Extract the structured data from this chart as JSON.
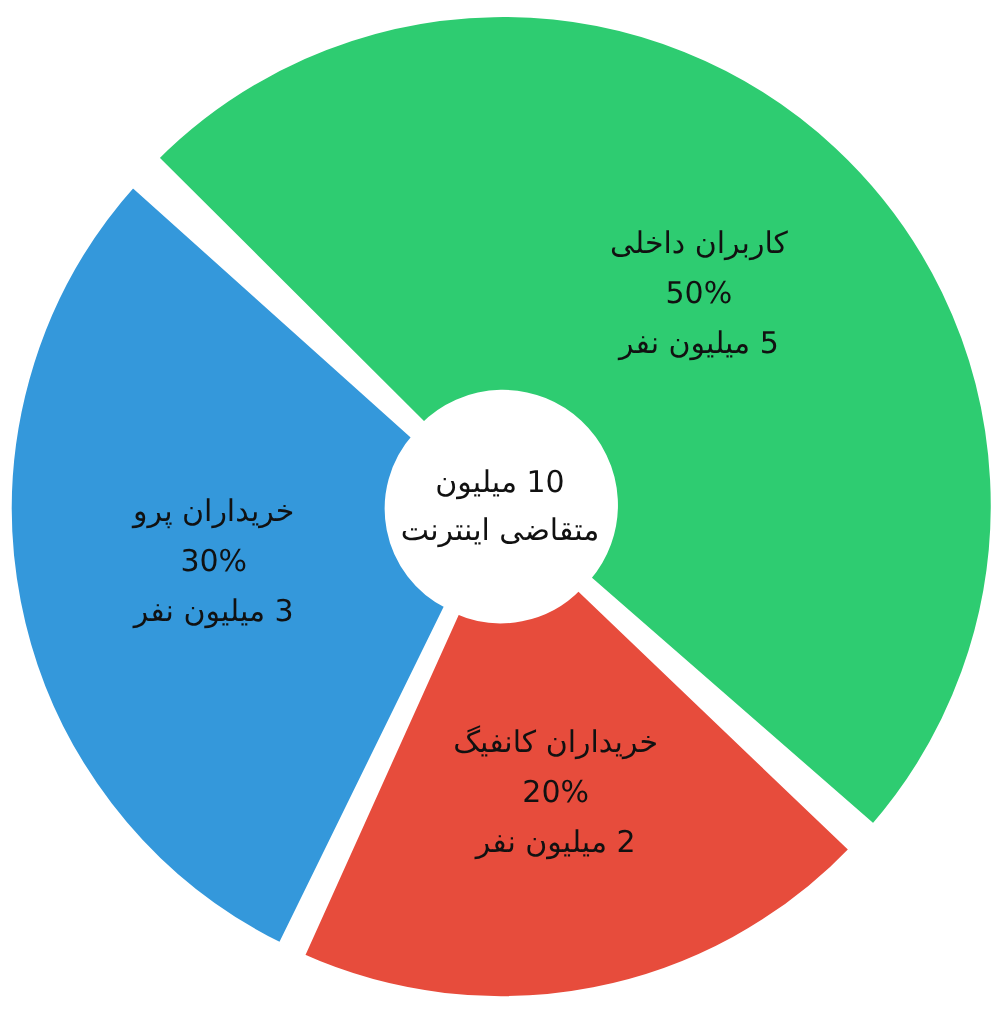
{
  "chart_data": {
    "type": "donut",
    "categories": [
      "کاربران داخلی",
      "خریداران کانفیگ",
      "خریداران پرو"
    ],
    "values": [
      50,
      20,
      30
    ],
    "colors": [
      "#2ecc71",
      "#e74c3c",
      "#3498db"
    ],
    "value_labels": [
      "50%",
      "20%",
      "30%"
    ],
    "annotations": [
      "10 میلیون",
      "متقاضی اینترنت",
      "5 میلیون نفر",
      "2 میلیون نفر",
      "3 میلیون نفر"
    ],
    "legend": false
  }
}
